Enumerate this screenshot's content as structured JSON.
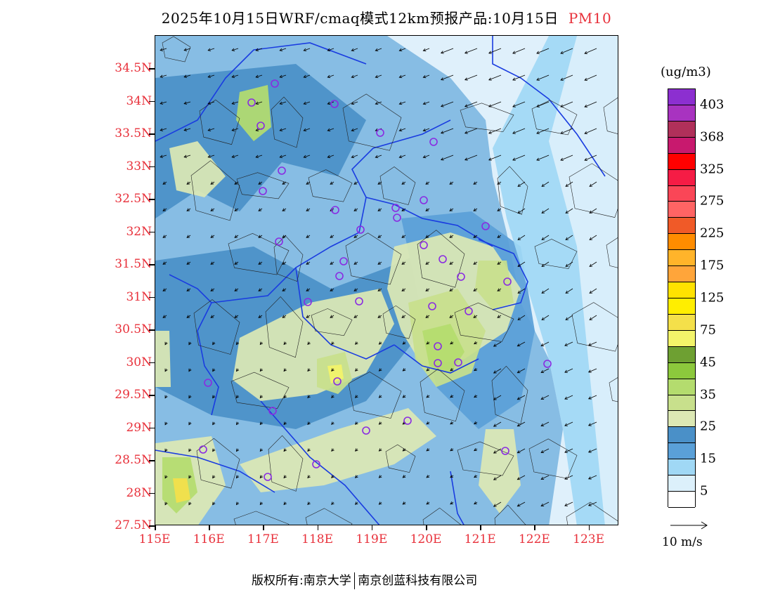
{
  "title": {
    "main": "2025年10月15日WRF/cmaq模式12km预报产品:10月15日",
    "product": "PM10"
  },
  "map": {
    "lat_labels": [
      "34.5N",
      "34N",
      "33.5N",
      "33N",
      "32.5N",
      "32N",
      "31.5N",
      "31N",
      "30.5N",
      "30N",
      "29.5N",
      "29N",
      "28.5N",
      "28N",
      "27.5N"
    ],
    "lon_labels": [
      "115E",
      "116E",
      "117E",
      "118E",
      "119E",
      "120E",
      "121E",
      "122E",
      "123E"
    ],
    "label_color": "#e8303a",
    "boundary_color": "#1a3ce0",
    "station_marker_color": "#8a2be2"
  },
  "colorbar": {
    "unit": "(ug/m3)",
    "labels": [
      "403",
      "368",
      "325",
      "275",
      "225",
      "175",
      "125",
      "75",
      "45",
      "35",
      "25",
      "15",
      "5"
    ],
    "colors": [
      "#8c2fd0",
      "#a833c0",
      "#b0305a",
      "#c8196e",
      "#ff0000",
      "#f51c45",
      "#fa4657",
      "#ff6464",
      "#f05a28",
      "#ff8c00",
      "#ffb42a",
      "#ffa53a",
      "#ffe200",
      "#ffee00",
      "#f4e04a",
      "#f3f46a",
      "#6ea032",
      "#8cc83c",
      "#b4dc6e",
      "#c8e08c",
      "#dce8b4",
      "#4a90c8",
      "#5aa0d8",
      "#a0d8f5",
      "#dcf0fb",
      "#ffffff"
    ]
  },
  "vector_reference": {
    "label": "10 m/s"
  },
  "footer": {
    "left": "版权所有:南京大学",
    "right": "南京创蓝科技有限公司"
  }
}
